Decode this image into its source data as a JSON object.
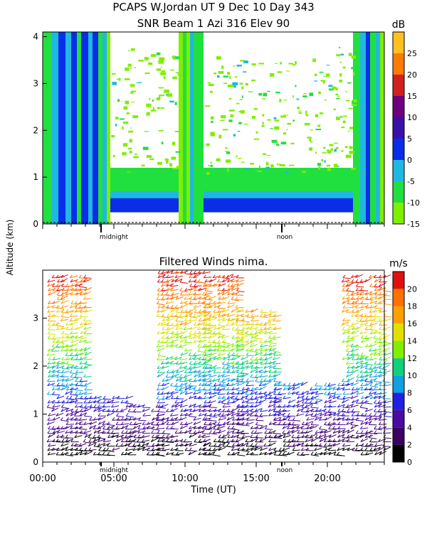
{
  "header": {
    "title_line1": "PCAPS W.Jordan UT   9 Dec 10 Day 343",
    "title_line2": "SNR Beam 1 Azi 316 Elev 90"
  },
  "colors": {
    "snr_scale": [
      "#80ee00",
      "#20e040",
      "#20b8e0",
      "#0a2de8",
      "#3a10a8",
      "#6e007e",
      "#d02020",
      "#ff7a00",
      "#ffc020"
    ],
    "wind_scale": [
      "#000000",
      "#3a0060",
      "#4b0aa0",
      "#2020e0",
      "#10a0e0",
      "#10d080",
      "#80f000",
      "#e0e000",
      "#ffa000",
      "#ff7000",
      "#e01010"
    ]
  },
  "chart_data": [
    {
      "type": "heatmap",
      "title": "SNR Beam 1 Azi 316 Elev 90",
      "ylabel": "Altitude (km)",
      "yticks": [
        "0",
        "1",
        "2",
        "3",
        "4"
      ],
      "ylim": [
        0,
        4.1
      ],
      "xlim": [
        0,
        24
      ],
      "x_markers": [
        "midnight",
        "noon"
      ],
      "colorbar": {
        "unit": "dB",
        "ticks": [
          "25",
          "20",
          "15",
          "10",
          "5",
          "0",
          "-5",
          "-10",
          "-15"
        ],
        "range": [
          -15,
          30
        ]
      }
    },
    {
      "type": "scatter",
      "title": "Filtered Winds nima.",
      "xlabel": "Time (UT)",
      "xticks": [
        "00:00",
        "05:00",
        "10:00",
        "15:00",
        "20:00"
      ],
      "yticks": [
        "0",
        "1",
        "2",
        "3"
      ],
      "ylim": [
        0,
        4.0
      ],
      "xlim": [
        0,
        24
      ],
      "x_markers": [
        "midnight",
        "noon"
      ],
      "colorbar": {
        "unit": "m/s",
        "ticks": [
          "20",
          "18",
          "16",
          "14",
          "12",
          "10",
          "8",
          "6",
          "4",
          "2",
          "0"
        ],
        "range": [
          0,
          22
        ]
      }
    }
  ]
}
